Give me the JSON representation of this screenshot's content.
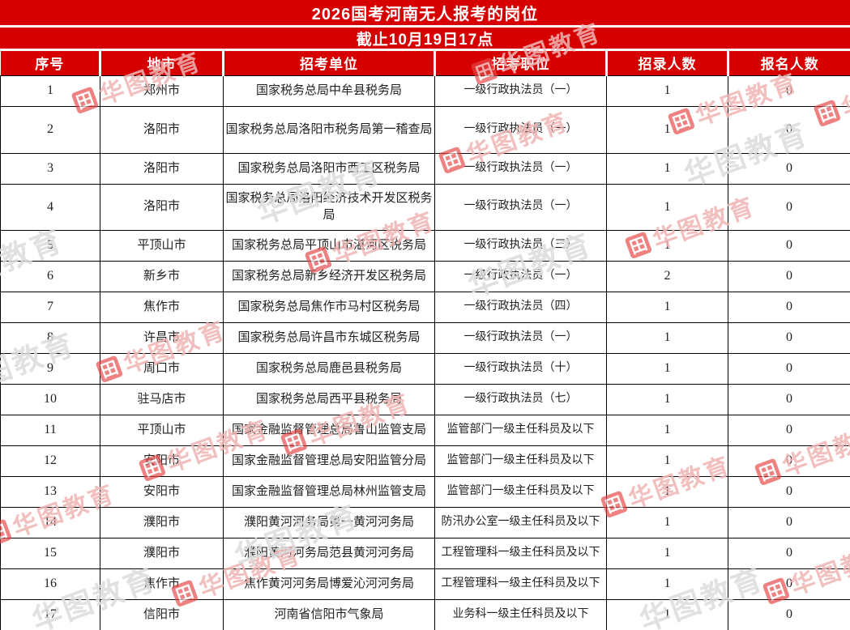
{
  "title": "2026国考河南无人报考的岗位",
  "subtitle": "截止10月19日17点",
  "chart_data": {
    "type": "table",
    "title": "2026国考河南无人报考的岗位",
    "subtitle": "截止10月19日17点",
    "columns": [
      "序号",
      "地市",
      "招考单位",
      "招考职位",
      "招录人数",
      "报名人数"
    ],
    "rows": [
      [
        "1",
        "郑州市",
        "国家税务总局中牟县税务局",
        "一级行政执法员（一）",
        "1",
        "0"
      ],
      [
        "2",
        "洛阳市",
        "国家税务总局洛阳市税务局第一稽查局",
        "一级行政执法员（一）",
        "1",
        "0"
      ],
      [
        "3",
        "洛阳市",
        "国家税务总局洛阳市西工区税务局",
        "一级行政执法员（一）",
        "1",
        "0"
      ],
      [
        "4",
        "洛阳市",
        "国家税务总局洛阳经济技术开发区税务局",
        "一级行政执法员（一）",
        "1",
        "0"
      ],
      [
        "5",
        "平顶山市",
        "国家税务总局平顶山市湛河区税务局",
        "一级行政执法员（三）",
        "1",
        "0"
      ],
      [
        "6",
        "新乡市",
        "国家税务总局新乡经济开发区税务局",
        "一级行政执法员（一）",
        "2",
        "0"
      ],
      [
        "7",
        "焦作市",
        "国家税务总局焦作市马村区税务局",
        "一级行政执法员（四）",
        "1",
        "0"
      ],
      [
        "8",
        "许昌市",
        "国家税务总局许昌市东城区税务局",
        "一级行政执法员（一）",
        "1",
        "0"
      ],
      [
        "9",
        "周口市",
        "国家税务总局鹿邑县税务局",
        "一级行政执法员（十）",
        "1",
        "0"
      ],
      [
        "10",
        "驻马店市",
        "国家税务总局西平县税务局",
        "一级行政执法员（七）",
        "1",
        "0"
      ],
      [
        "11",
        "平顶山市",
        "国家金融监督管理总局鲁山监管支局",
        "监管部门一级主任科员及以下",
        "1",
        "0"
      ],
      [
        "12",
        "安阳市",
        "国家金融监督管理总局安阳监管分局",
        "监管部门一级主任科员及以下",
        "1",
        "0"
      ],
      [
        "13",
        "安阳市",
        "国家金融监督管理总局林州监管支局",
        "监管部门一级主任科员及以下",
        "1",
        "0"
      ],
      [
        "14",
        "濮阳市",
        "濮阳黄河河务局第一黄河河务局",
        "防汛办公室一级主任科员及以下",
        "1",
        "0"
      ],
      [
        "15",
        "濮阳市",
        "濮阳黄河河务局范县黄河河务局",
        "工程管理科一级主任科员及以下",
        "1",
        "0"
      ],
      [
        "16",
        "焦作市",
        "焦作黄河河务局博爱沁河河务局",
        "工程管理科一级主任科员及以下",
        "1",
        "0"
      ],
      [
        "17",
        "信阳市",
        "河南省信阳市气象局",
        "业务科一级主任科员及以下",
        "1",
        "0"
      ]
    ]
  },
  "watermark": {
    "text": "华图教育",
    "logo_glyph": "田"
  },
  "colors": {
    "header_red": "#d60000",
    "header_text": "#ffffff",
    "body_text": "#1f1f1f",
    "border": "#000000",
    "watermark_pink": "#f0b4b4",
    "watermark_gray": "#dcdcdc",
    "watermark_logo_red": "#e64848"
  }
}
